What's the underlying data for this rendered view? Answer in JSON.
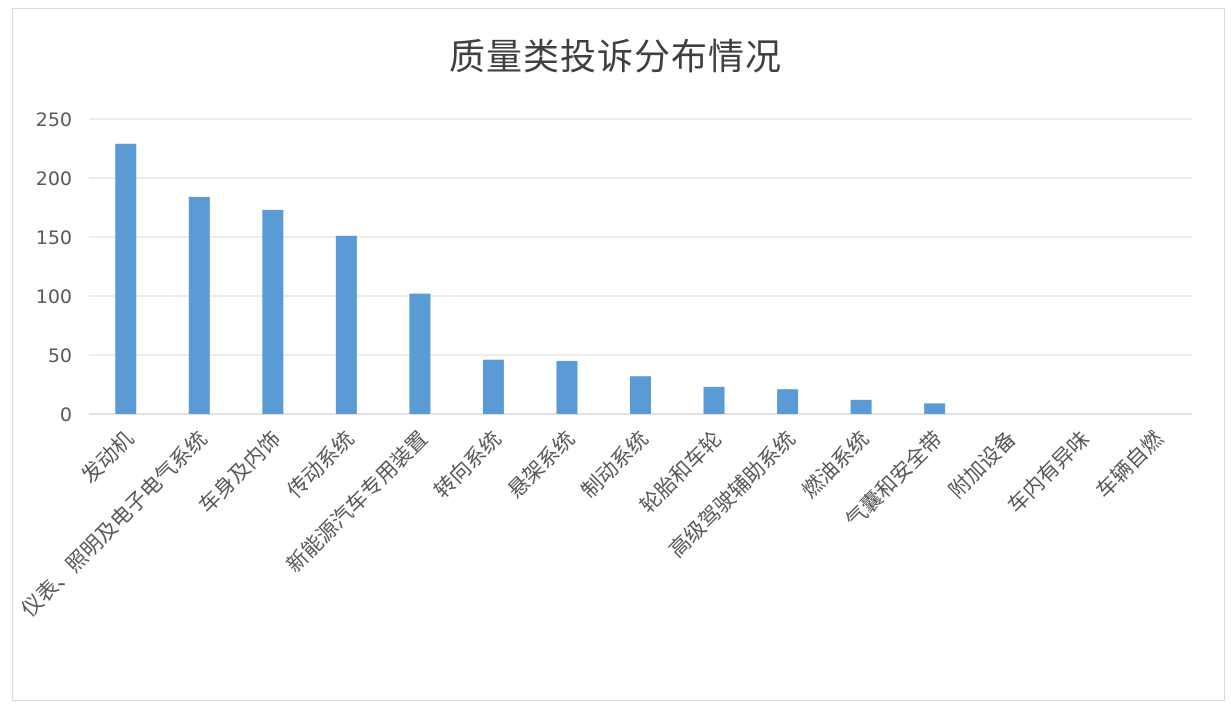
{
  "chart_data": {
    "type": "bar",
    "title": "质量类投诉分布情况",
    "xlabel": "",
    "ylabel": "",
    "ylim": [
      0,
      250
    ],
    "yticks": [
      0,
      50,
      100,
      150,
      200,
      250
    ],
    "grid": true,
    "legend": "none",
    "bar_color": "#5b9bd5",
    "grid_color": "#d9d9d9",
    "categories": [
      "发动机",
      "仪表、照明及电子电气系统",
      "车身及内饰",
      "传动系统",
      "新能源汽车专用装置",
      "转向系统",
      "悬架系统",
      "制动系统",
      "轮胎和车轮",
      "高级驾驶辅助系统",
      "燃油系统",
      "气囊和安全带",
      "附加设备",
      "车内有异味",
      "车辆自燃"
    ],
    "values": [
      229,
      184,
      173,
      151,
      102,
      46,
      45,
      32,
      23,
      21,
      12,
      9,
      0,
      0,
      0
    ]
  }
}
